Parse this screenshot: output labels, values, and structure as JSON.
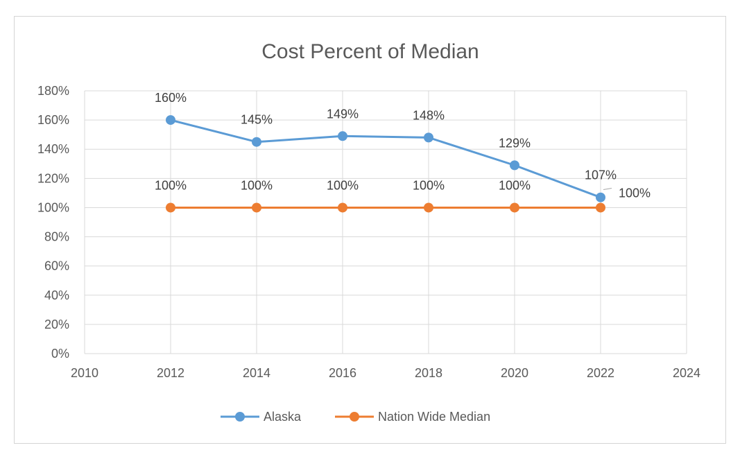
{
  "chart_data": {
    "type": "line",
    "title": "Cost Percent of Median",
    "xlabel": "",
    "ylabel": "",
    "x": [
      2012,
      2014,
      2016,
      2018,
      2020,
      2022
    ],
    "xlim": [
      2010,
      2024
    ],
    "x_ticks": [
      2010,
      2012,
      2014,
      2016,
      2018,
      2020,
      2022,
      2024
    ],
    "x_tick_labels": [
      "2010",
      "2012",
      "2014",
      "2016",
      "2018",
      "2020",
      "2022",
      "2024"
    ],
    "ylim": [
      0,
      180
    ],
    "y_ticks": [
      0,
      20,
      40,
      60,
      80,
      100,
      120,
      140,
      160,
      180
    ],
    "y_tick_labels": [
      "0%",
      "20%",
      "40%",
      "60%",
      "80%",
      "100%",
      "120%",
      "140%",
      "160%",
      "180%"
    ],
    "grid": "horizontal",
    "legend_position": "bottom",
    "series": [
      {
        "name": "Alaska",
        "color": "#5B9BD5",
        "values": [
          160,
          145,
          149,
          148,
          129,
          107
        ],
        "labels": [
          "160%",
          "145%",
          "149%",
          "148%",
          "129%",
          "107%"
        ]
      },
      {
        "name": "Nation Wide Median",
        "color": "#ED7D31",
        "values": [
          100,
          100,
          100,
          100,
          100,
          100
        ],
        "labels": [
          "100%",
          "100%",
          "100%",
          "100%",
          "100%",
          "100%"
        ]
      }
    ]
  }
}
